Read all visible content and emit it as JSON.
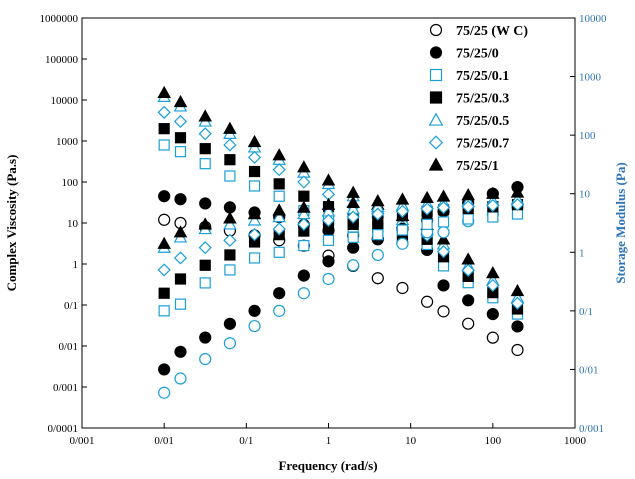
{
  "chart_data": {
    "type": "scatter",
    "xlabel": "Frequency (rad/s)",
    "ylabel": "Complex Viscosity (Pa.s)",
    "y2label": "Storage Modulus (Pa)",
    "x_scale": "log",
    "y_scale": "log",
    "y2_scale": "log",
    "xlim": [
      0.001,
      1000
    ],
    "ylim": [
      0.0001,
      1000000
    ],
    "y2lim": [
      0.001,
      10000
    ],
    "x_ticks": [
      "0/001",
      "0/01",
      "0/1",
      "1",
      "10",
      "100",
      "1000"
    ],
    "y_ticks": [
      "0/0001",
      "0/001",
      "0/01",
      "0/1",
      "1",
      "10",
      "100",
      "1000",
      "10000",
      "100000",
      "1000000"
    ],
    "y2_ticks": [
      "0/001",
      "0/01",
      "0/1",
      "1",
      "10",
      "100",
      "1000",
      "10000"
    ],
    "grid": false,
    "legend_position": "top-right",
    "x": [
      0.01,
      0.0158,
      0.0316,
      0.0631,
      0.1259,
      0.2512,
      0.5012,
      1.0,
      1.9953,
      3.9811,
      7.9433,
      15.849,
      25.119,
      50.119,
      100.0,
      199.53
    ],
    "series": [
      {
        "name": "75/25 (W C)",
        "axis": "y",
        "marker": "open-circle",
        "color": "#000000",
        "values": [
          12,
          10,
          8,
          6.5,
          5,
          3.8,
          2.8,
          1.6,
          0.9,
          0.45,
          0.26,
          0.12,
          0.07,
          0.035,
          0.016,
          0.008
        ]
      },
      {
        "name": "75/25/0",
        "axis": "y",
        "marker": "filled-circle",
        "color": "#000000",
        "values": [
          45,
          38,
          30,
          24,
          18,
          14,
          9,
          6.5,
          5,
          4,
          3.2,
          2.2,
          0.3,
          0.13,
          0.06,
          0.03
        ]
      },
      {
        "name": "75/25/0.1",
        "axis": "y",
        "marker": "open-square",
        "color": "#1a9fd9",
        "values": [
          800,
          550,
          280,
          140,
          80,
          45,
          20,
          12,
          8,
          6,
          4,
          3,
          0.9,
          0.35,
          0.15,
          0.06
        ]
      },
      {
        "name": "75/25/0.3",
        "axis": "y",
        "marker": "filled-square",
        "color": "#000000",
        "values": [
          2000,
          1200,
          650,
          350,
          180,
          90,
          45,
          25,
          12,
          8,
          5,
          4,
          1.5,
          0.5,
          0.2,
          0.08
        ]
      },
      {
        "name": "75/25/0.5",
        "axis": "y",
        "marker": "open-triangle",
        "color": "#1a9fd9",
        "values": [
          12000,
          7000,
          3000,
          1500,
          700,
          350,
          170,
          90,
          45,
          22,
          12,
          7,
          3,
          0.9,
          0.4,
          0.15
        ]
      },
      {
        "name": "75/25/0.7",
        "axis": "y",
        "marker": "open-diamond",
        "color": "#1a9fd9",
        "values": [
          5000,
          3000,
          1500,
          800,
          400,
          200,
          100,
          50,
          25,
          14,
          8,
          5,
          2,
          0.7,
          0.3,
          0.11
        ]
      },
      {
        "name": "75/25/1",
        "axis": "y",
        "marker": "filled-triangle",
        "color": "#000000",
        "values": [
          15000,
          9000,
          4000,
          2000,
          950,
          450,
          230,
          110,
          55,
          28,
          15,
          9,
          4,
          1.3,
          0.6,
          0.22
        ]
      },
      {
        "name": "75/25 (W C)",
        "axis": "y2",
        "marker": "open-circle",
        "color": "#1a9fd9",
        "values": [
          0.004,
          0.007,
          0.015,
          0.028,
          0.055,
          0.1,
          0.2,
          0.35,
          0.6,
          0.9,
          1.4,
          2.2,
          2.2,
          3.4,
          4.5,
          6
        ]
      },
      {
        "name": "75/25/0",
        "axis": "y2",
        "marker": "filled-circle",
        "color": "#000000",
        "values": [
          0.01,
          0.02,
          0.035,
          0.06,
          0.1,
          0.2,
          0.4,
          0.7,
          1.2,
          1.7,
          2.5,
          3.5,
          5,
          7,
          10,
          13
        ]
      },
      {
        "name": "75/25/0.1",
        "axis": "y2",
        "marker": "open-square",
        "color": "#1a9fd9",
        "values": [
          0.1,
          0.13,
          0.3,
          0.5,
          0.8,
          1,
          1.3,
          1.6,
          1.8,
          2,
          2.4,
          3,
          3.3,
          3.7,
          4,
          4.5
        ]
      },
      {
        "name": "75/25/0.3",
        "axis": "y2",
        "marker": "filled-square",
        "color": "#000000",
        "values": [
          0.2,
          0.35,
          0.6,
          0.9,
          1.5,
          2,
          2.3,
          2.7,
          3,
          3.5,
          4.2,
          5,
          5.3,
          5.6,
          6,
          6.5
        ]
      },
      {
        "name": "75/25/0.5",
        "axis": "y2",
        "marker": "open-triangle",
        "color": "#1a9fd9",
        "values": [
          1.2,
          1.8,
          2.5,
          3,
          3.5,
          4,
          4.5,
          5,
          5.5,
          6,
          6.3,
          6.7,
          7,
          7.3,
          7.6,
          8
        ]
      },
      {
        "name": "75/25/0.7",
        "axis": "y2",
        "marker": "open-diamond",
        "color": "#1a9fd9",
        "values": [
          0.5,
          0.8,
          1.2,
          1.6,
          2,
          2.5,
          3,
          3.5,
          4,
          4.5,
          5,
          5.5,
          5.8,
          6,
          6.3,
          6.5
        ]
      },
      {
        "name": "75/25/1",
        "axis": "y2",
        "marker": "filled-triangle",
        "color": "#000000",
        "values": [
          1.4,
          2.2,
          3,
          3.8,
          4.5,
          5.2,
          5.8,
          6.5,
          7,
          7.5,
          8,
          8.5,
          9,
          9.5,
          10,
          10.5
        ]
      }
    ]
  },
  "legend": [
    {
      "label": "75/25 (W C)",
      "marker": "open-circle",
      "color": "#000000"
    },
    {
      "label": "75/25/0",
      "marker": "filled-circle",
      "color": "#000000"
    },
    {
      "label": "75/25/0.1",
      "marker": "open-square",
      "color": "#1a9fd9"
    },
    {
      "label": "75/25/0.3",
      "marker": "filled-square",
      "color": "#000000"
    },
    {
      "label": "75/25/0.5",
      "marker": "open-triangle",
      "color": "#1a9fd9"
    },
    {
      "label": "75/25/0.7",
      "marker": "open-diamond",
      "color": "#1a9fd9"
    },
    {
      "label": "75/25/1",
      "marker": "filled-triangle",
      "color": "#000000"
    }
  ],
  "colors": {
    "axis": "#000000",
    "right_axis": "#2e74b5",
    "blue_marker": "#1a9fd9"
  }
}
